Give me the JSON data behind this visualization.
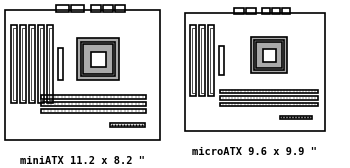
{
  "bg_color": "#ffffff",
  "board_edge": "#000000",
  "cpu_gray": "#aaaaaa",
  "label1": "miniATX 11.2 x 8.2 \"",
  "label2": "microATX 9.6 x 9.9 \"",
  "label_fontsize": 7.5,
  "label_fontweight": "bold"
}
